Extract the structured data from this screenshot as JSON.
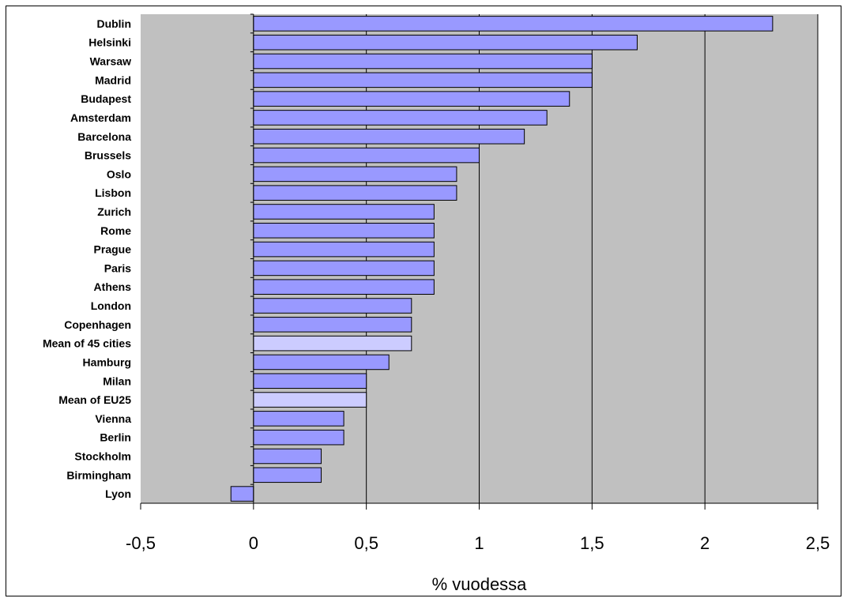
{
  "chart_data": {
    "type": "bar",
    "orientation": "horizontal",
    "categories": [
      "Dublin",
      "Helsinki",
      "Warsaw",
      "Madrid",
      "Budapest",
      "Amsterdam",
      "Barcelona",
      "Brussels",
      "Oslo",
      "Lisbon",
      "Zurich",
      "Rome",
      "Prague",
      "Paris",
      "Athens",
      "London",
      "Copenhagen",
      "Mean of 45 cities",
      "Hamburg",
      "Milan",
      "Mean of EU25",
      "Vienna",
      "Berlin",
      "Stockholm",
      "Birmingham",
      "Lyon"
    ],
    "values": [
      2.3,
      1.7,
      1.5,
      1.5,
      1.4,
      1.3,
      1.2,
      1.0,
      0.9,
      0.9,
      0.8,
      0.8,
      0.8,
      0.8,
      0.8,
      0.7,
      0.7,
      0.7,
      0.6,
      0.5,
      0.5,
      0.4,
      0.4,
      0.3,
      0.3,
      -0.1
    ],
    "highlighted": [
      "Mean of 45 cities",
      "Mean of EU25"
    ],
    "xlabel": "% vuodessa",
    "xlim": [
      -0.5,
      2.5
    ],
    "xticks": [
      "-0,5",
      "0",
      "0,5",
      "1",
      "1,5",
      "2",
      "2,5"
    ],
    "grid": "vertical",
    "colors": {
      "plot_background": "#c0c0c0",
      "bar_fill": "#9999ff",
      "bar_fill_highlight": "#ccccff",
      "bar_stroke": "#000000"
    }
  }
}
